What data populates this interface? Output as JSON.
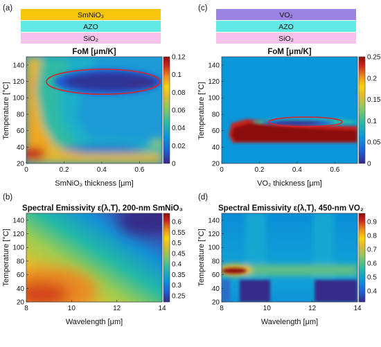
{
  "colormap_stops": [
    "#352a87",
    "#1f5fd6",
    "#0a97d9",
    "#2bb9a6",
    "#8cc760",
    "#e2ba32",
    "#f9d40e",
    "#e98a21",
    "#c8231a",
    "#8a0f0c"
  ],
  "highlight_color": "#d9232a",
  "panels": {
    "a": {
      "label": "(a)",
      "layers": [
        {
          "text": "SmNiO₃",
          "color": "#f6c40a"
        },
        {
          "text": "AZO",
          "color": "#62e9e6"
        },
        {
          "text": "SiO₂",
          "color": "#f4c2ea"
        }
      ]
    },
    "c": {
      "label": "(c)",
      "layers": [
        {
          "text": "VO₂",
          "color": "#9a82e3"
        },
        {
          "text": "AZO",
          "color": "#62e9e6"
        },
        {
          "text": "SiO₂",
          "color": "#f4c2ea"
        }
      ]
    },
    "b": {
      "label": "(b)"
    },
    "d": {
      "label": "(d)"
    }
  },
  "chart_data": [
    {
      "id": "a",
      "type": "heatmap",
      "title": "FoM [μm/K]",
      "xlabel": "SmNiO₃ thickness [μm]",
      "ylabel": "Temperature [°C]",
      "xlim": [
        0,
        0.72
      ],
      "ylim": [
        20,
        150
      ],
      "xticks": [
        "0",
        "0.2",
        "0.4",
        "0.6"
      ],
      "yticks": [
        "20",
        "40",
        "60",
        "80",
        "100",
        "120",
        "140"
      ],
      "colorbar": {
        "ticks": [
          "0",
          "0.02",
          "0.04",
          "0.06",
          "0.08",
          "0.1",
          "0.12"
        ],
        "range": [
          0,
          0.12
        ]
      },
      "highlight_ellipse": {
        "center": [
          0.415,
          120
        ],
        "radius": [
          0.3,
          15
        ]
      }
    },
    {
      "id": "c",
      "type": "heatmap",
      "title": "FoM [μm/K]",
      "xlabel": "VO₂ thickness [μm]",
      "ylabel": "Temperature [°C]",
      "xlim": [
        0,
        0.72
      ],
      "ylim": [
        20,
        150
      ],
      "xticks": [
        "0",
        "0.2",
        "0.4",
        "0.6"
      ],
      "yticks": [
        "20",
        "40",
        "60",
        "80",
        "100",
        "120",
        "140"
      ],
      "colorbar": {
        "ticks": [
          "0",
          "0.05",
          "0.1",
          "0.15",
          "0.2",
          "0.25"
        ],
        "range": [
          0,
          0.25
        ]
      },
      "highlight_ellipse": {
        "center": [
          0.44,
          70
        ],
        "radius": [
          0.17,
          5
        ]
      }
    },
    {
      "id": "b",
      "type": "heatmap",
      "title": "Spectral Emissivity ε(λ,T), 200-nm SmNiO₃",
      "xlabel": "Wavelength [μm]",
      "ylabel": "Temperature [°C]",
      "xlim": [
        8,
        14
      ],
      "ylim": [
        20,
        150
      ],
      "xticks": [
        "8",
        "10",
        "12",
        "14"
      ],
      "yticks": [
        "20",
        "40",
        "60",
        "80",
        "100",
        "120",
        "140"
      ],
      "colorbar": {
        "ticks": [
          "0.25",
          "0.3",
          "0.35",
          "0.4",
          "0.45",
          "0.5",
          "0.55",
          "0.6"
        ],
        "range": [
          0.22,
          0.64
        ]
      }
    },
    {
      "id": "d",
      "type": "heatmap",
      "title": "Spectral Emissivity ε(λ,T), 450-nm VO₂",
      "xlabel": "Wavelength [μm]",
      "ylabel": "Temperature [°C]",
      "xlim": [
        8,
        14
      ],
      "ylim": [
        20,
        150
      ],
      "xticks": [
        "8",
        "10",
        "12",
        "14"
      ],
      "yticks": [
        "20",
        "40",
        "60",
        "80",
        "100",
        "120",
        "140"
      ],
      "colorbar": {
        "ticks": [
          "0.4",
          "0.5",
          "0.6",
          "0.7",
          "0.8",
          "0.9"
        ],
        "range": [
          0.32,
          0.96
        ]
      }
    }
  ]
}
